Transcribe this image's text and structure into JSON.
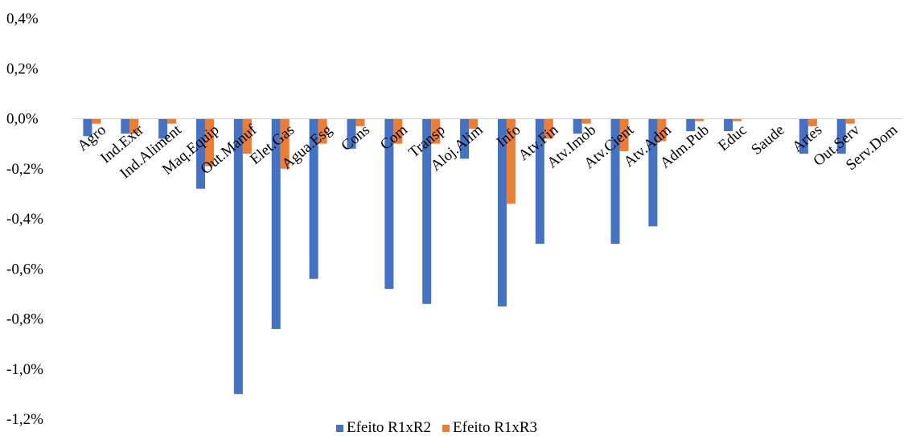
{
  "chart_data": {
    "type": "bar",
    "categories": [
      "Agro",
      "Ind.Extr",
      "Ind.Aliment",
      "Maq.Equip",
      "Out.Manuf",
      "Elet.Gas",
      "Agua.Esg",
      "Cons",
      "Com",
      "Transp",
      "Aloj.Alim",
      "Info",
      "Atv.Fin",
      "Atv.Imob",
      "Atv.Cient",
      "Atv.Adm",
      "Adm.Pub",
      "Educ",
      "Saude",
      "Artes",
      "Out.Serv",
      "Serv.Dom"
    ],
    "series": [
      {
        "name": "Efeito R1xR2",
        "color": "#4472C4",
        "values": [
          -0.07,
          -0.06,
          -0.08,
          -0.28,
          -1.1,
          -0.84,
          -0.64,
          -0.12,
          -0.68,
          -0.74,
          -0.16,
          -0.75,
          -0.5,
          -0.06,
          -0.5,
          -0.43,
          -0.05,
          -0.05,
          0,
          -0.14,
          -0.14,
          0
        ]
      },
      {
        "name": "Efeito R1xR3",
        "color": "#ED7D31",
        "values": [
          -0.02,
          -0.06,
          -0.02,
          -0.19,
          -0.14,
          -0.2,
          -0.1,
          -0.03,
          -0.1,
          -0.1,
          -0.04,
          -0.34,
          -0.08,
          -0.02,
          -0.13,
          -0.09,
          -0.01,
          -0.01,
          0,
          -0.03,
          -0.02,
          0
        ]
      }
    ],
    "y_ticks": [
      "0,4%",
      "0,2%",
      "0,0%",
      "-0,2%",
      "-0,4%",
      "-0,6%",
      "-0,8%",
      "-1,0%",
      "-1,2%"
    ],
    "ylim": [
      -1.2,
      0.4
    ],
    "grid": false,
    "legend_position": "bottom"
  }
}
